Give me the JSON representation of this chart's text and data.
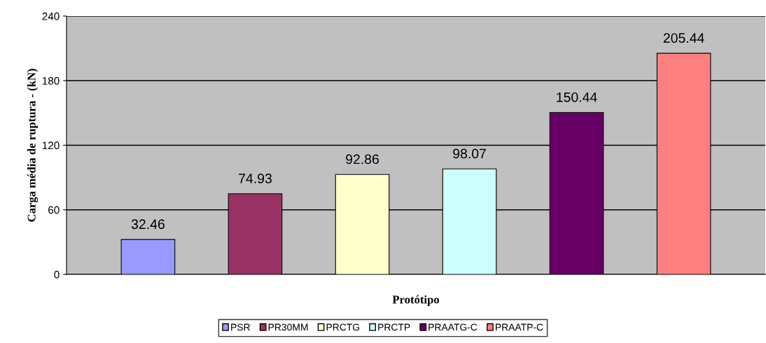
{
  "chart_data": {
    "type": "bar",
    "xlabel": "Protótipo",
    "ylabel": "Carga média de ruptura - (kN)",
    "categories": [
      null
    ],
    "series": [
      {
        "name": "PSR",
        "color": "#9999ff",
        "values": [
          32.46
        ]
      },
      {
        "name": "PR30MM",
        "color": "#993366",
        "values": [
          74.93
        ]
      },
      {
        "name": "PRCTG",
        "color": "#ffffcc",
        "values": [
          92.86
        ]
      },
      {
        "name": "PRCTP",
        "color": "#ccffff",
        "values": [
          98.07
        ]
      },
      {
        "name": "PRAATG-C",
        "color": "#660066",
        "values": [
          150.44
        ]
      },
      {
        "name": "PRAATP-C",
        "color": "#ff8080",
        "values": [
          205.44
        ]
      }
    ],
    "ylim": [
      0,
      240
    ],
    "yticks": [
      0,
      60,
      120,
      180,
      240
    ],
    "grid": "y",
    "legend": "bottom",
    "data_labels": true
  }
}
